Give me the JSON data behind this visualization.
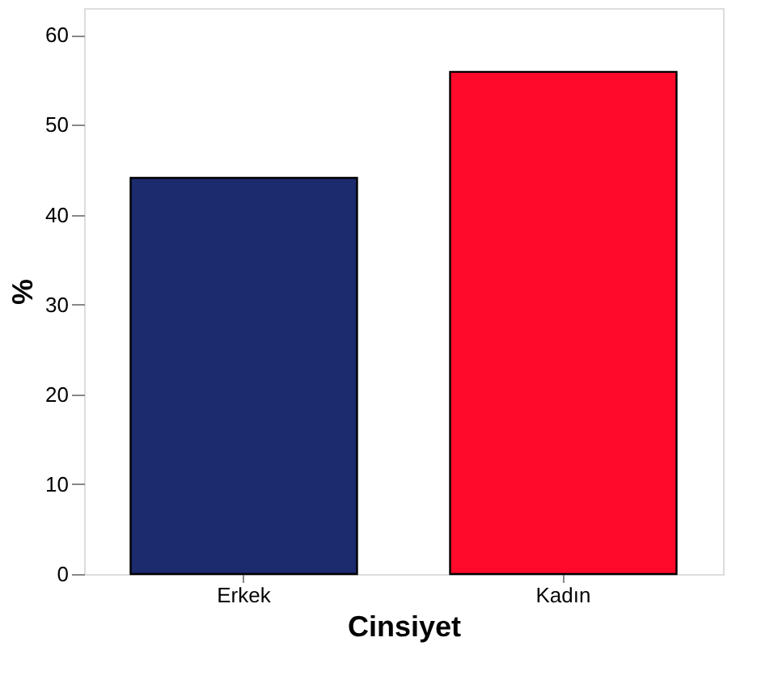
{
  "chart_data": {
    "type": "bar",
    "xlabel": "Cinsiyet",
    "ylabel": "%",
    "categories": [
      "Erkek",
      "Kadın"
    ],
    "values": [
      44.1,
      55.9
    ],
    "colors": [
      "#1c2a6e",
      "#ff0a2a"
    ],
    "ylim": [
      0,
      63
    ],
    "yticks": [
      0,
      10,
      20,
      30,
      40,
      50,
      60
    ],
    "grid": false
  }
}
